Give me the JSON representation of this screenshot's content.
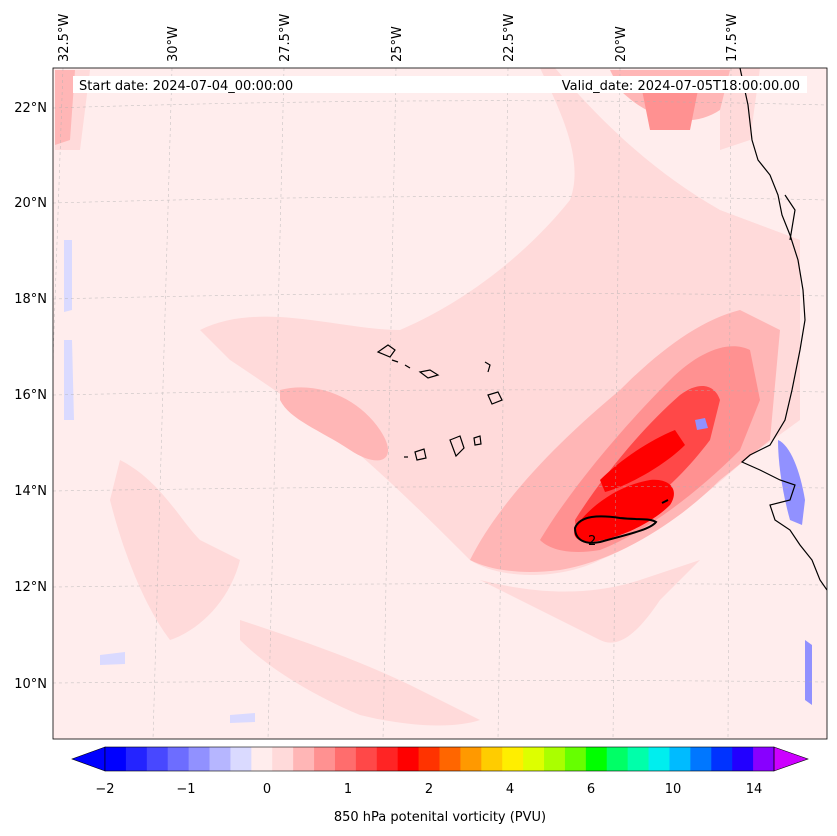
{
  "map": {
    "start_label": "Start date: 2024-07-04_00:00:00",
    "valid_label": "Valid_date: 2024-07-05T18:00:00.00",
    "lon_labels": [
      "32.5°W",
      "30°W",
      "27.5°W",
      "25°W",
      "22.5°W",
      "20°W",
      "17.5°W"
    ],
    "lat_labels": [
      "22°N",
      "20°N",
      "18°N",
      "16°N",
      "14°N",
      "12°N",
      "10°N"
    ],
    "contour_label": "2"
  },
  "colorbar": {
    "label": "850 hPa potenital vorticity (PVU)",
    "ticks": [
      "−2",
      "−1",
      "0",
      "1",
      "2",
      "4",
      "6",
      "10",
      "14"
    ],
    "colors": [
      "#0000ff",
      "#2424ff",
      "#4848ff",
      "#6d6dff",
      "#9191ff",
      "#b6b6ff",
      "#dadaff",
      "#ffeded",
      "#ffdada",
      "#ffb6b6",
      "#ff9191",
      "#ff6d6d",
      "#ff4848",
      "#ff2424",
      "#ff0000",
      "#ff3300",
      "#ff6600",
      "#ff9900",
      "#ffcc00",
      "#ffee00",
      "#ddff00",
      "#aaff00",
      "#66ff00",
      "#00ff00",
      "#00ff66",
      "#00ffaa",
      "#00eeee",
      "#00bbff",
      "#0077ff",
      "#0033ff",
      "#2200ff",
      "#8800ff"
    ],
    "under_color": "#0000ff",
    "over_color": "#cc00ff"
  }
}
